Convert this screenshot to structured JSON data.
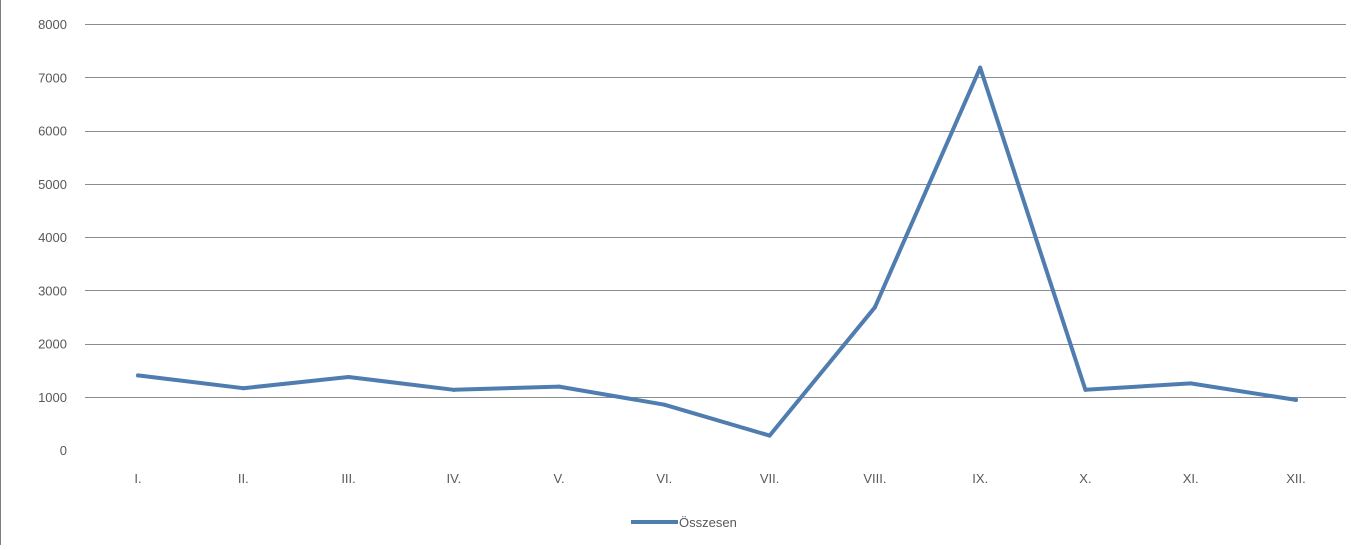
{
  "chart_data": {
    "type": "line",
    "categories": [
      "I.",
      "II.",
      "III.",
      "IV.",
      "V.",
      "VI.",
      "VII.",
      "VIII.",
      "IX.",
      "X.",
      "XI.",
      "XII."
    ],
    "series": [
      {
        "name": "Összesen",
        "values": [
          1400,
          1160,
          1370,
          1130,
          1190,
          850,
          270,
          2680,
          7180,
          1130,
          1250,
          940
        ],
        "color": "#4f7db0"
      }
    ],
    "title": "",
    "xlabel": "",
    "ylabel": "",
    "ylim": [
      0,
      8000
    ],
    "yticks": [
      "0",
      "1000",
      "2000",
      "3000",
      "4000",
      "5000",
      "6000",
      "7000",
      "8000"
    ],
    "grid": true,
    "legend_position": "bottom"
  }
}
